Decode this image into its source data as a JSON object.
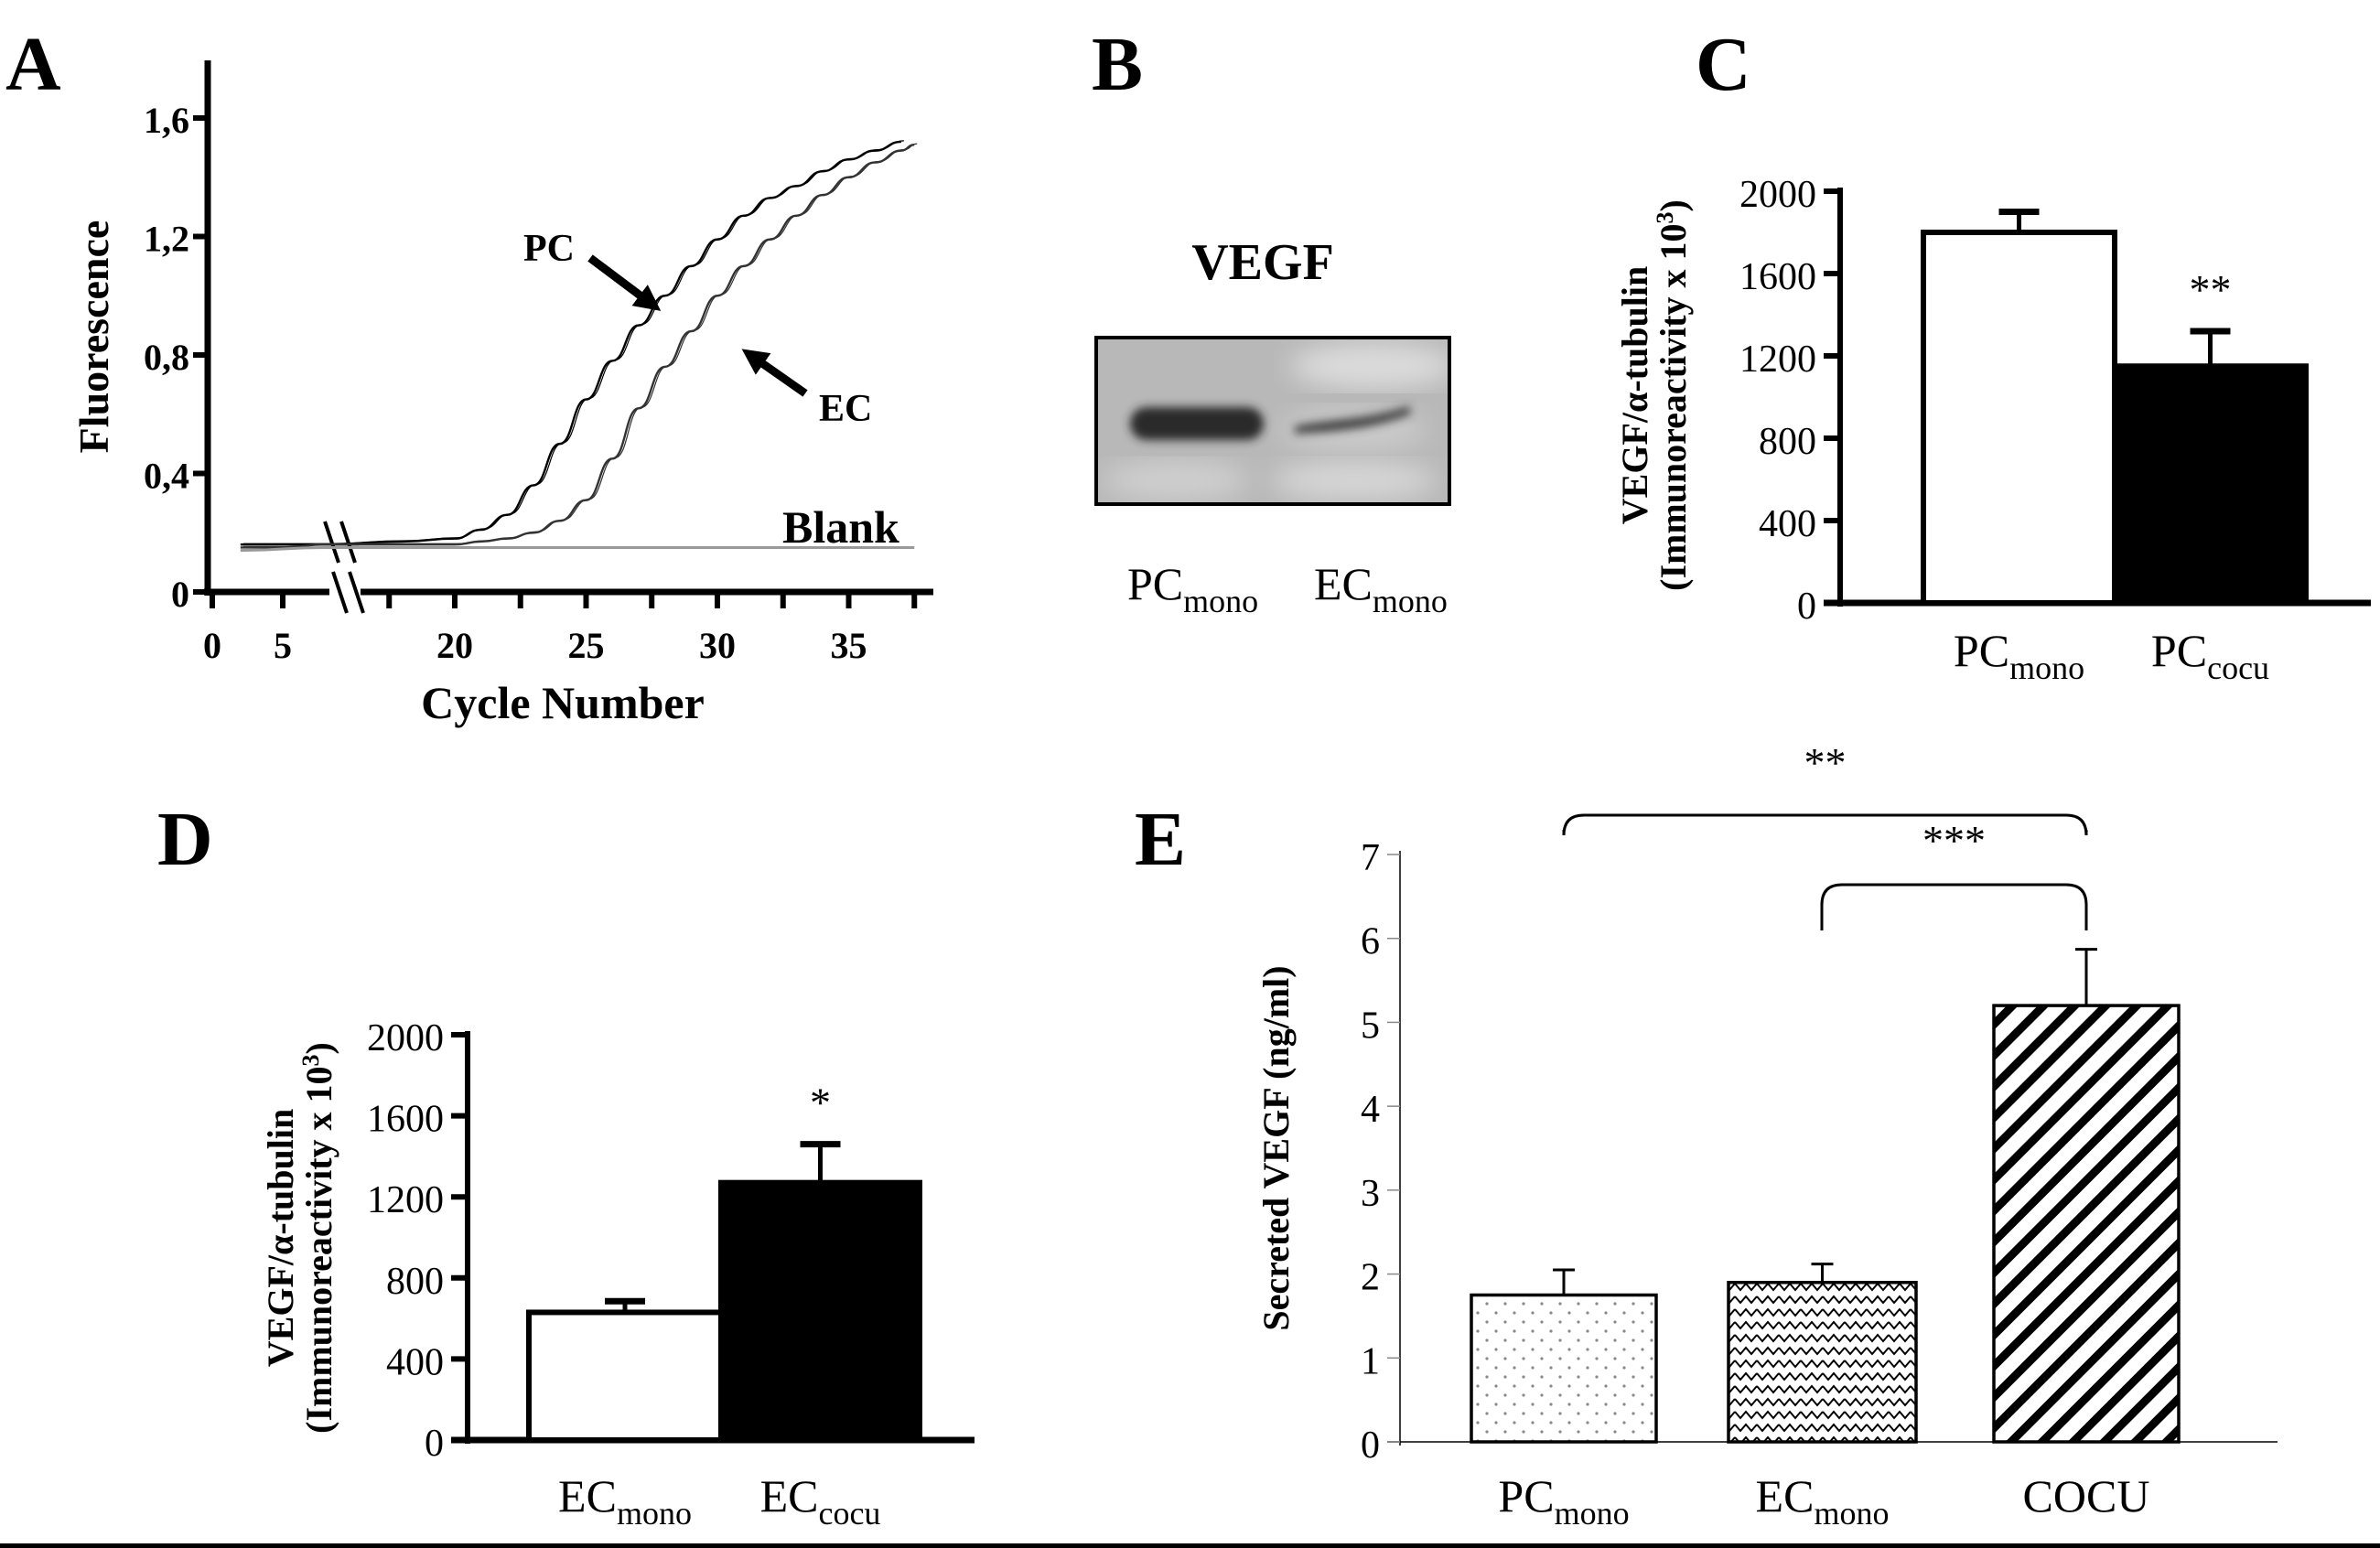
{
  "figure": {
    "panels": [
      "A",
      "B",
      "C",
      "D",
      "E"
    ]
  },
  "panel_a": {
    "letter": "A",
    "ylabel": "Fluorescence",
    "xlabel": "Cycle Number",
    "yticks": [
      "0",
      "0,4",
      "0,8",
      "1,2",
      "1,6"
    ],
    "xticks": [
      "0",
      "5",
      "20",
      "25",
      "30",
      "35"
    ],
    "annotations": {
      "pc": "PC",
      "ec": "EC",
      "blank": "Blank"
    }
  },
  "panel_b": {
    "letter": "B",
    "title": "VEGF",
    "lanes": [
      {
        "main": "PC",
        "sub": "mono"
      },
      {
        "main": "EC",
        "sub": "mono"
      }
    ]
  },
  "panel_c": {
    "letter": "C",
    "ylabel_line1": "VEGF/α-tubulin",
    "ylabel_line2": "(Immunoreactivity x 10",
    "ylabel_sup": "3",
    "ylabel_close": ")",
    "significance": "**"
  },
  "panel_d": {
    "letter": "D",
    "ylabel_line1": "VEGF/α-tubulin",
    "ylabel_line2": "(Immunoreactivity x 10",
    "ylabel_sup": "3",
    "ylabel_close": ")",
    "significance": "*"
  },
  "panel_e": {
    "letter": "E",
    "ylabel": "Secreted VEGF (ng/ml)",
    "brackets": [
      {
        "label": "**",
        "from": "PC_mono",
        "to": "COCU"
      },
      {
        "label": "***",
        "from": "EC_mono",
        "to": "COCU"
      }
    ]
  },
  "chart_data": [
    {
      "id": "A",
      "type": "line",
      "title": "",
      "xlabel": "Cycle Number",
      "ylabel": "Fluorescence",
      "ylim": [
        0,
        1.6
      ],
      "yticks": [
        0,
        0.4,
        0.8,
        1.2,
        1.6
      ],
      "xticks": [
        0,
        5,
        20,
        25,
        30,
        35
      ],
      "axis_break": "between 5 and 20",
      "series": [
        {
          "name": "PC",
          "color": "#000000",
          "x": [
            2,
            5,
            8,
            15,
            18,
            20,
            21,
            22,
            23,
            24,
            25,
            26,
            27,
            28,
            29,
            30,
            31,
            32,
            33,
            34,
            35,
            36,
            37
          ],
          "y": [
            0.16,
            0.16,
            0.16,
            0.16,
            0.17,
            0.18,
            0.21,
            0.26,
            0.36,
            0.5,
            0.65,
            0.78,
            0.9,
            1.0,
            1.1,
            1.19,
            1.27,
            1.33,
            1.37,
            1.42,
            1.46,
            1.49,
            1.52
          ]
        },
        {
          "name": "EC",
          "color": "#333333",
          "x": [
            2,
            5,
            8,
            15,
            18,
            20,
            21,
            22,
            23,
            24,
            25,
            26,
            27,
            28,
            29,
            30,
            31,
            32,
            33,
            34,
            35,
            36,
            37,
            37.5
          ],
          "y": [
            0.15,
            0.15,
            0.16,
            0.16,
            0.16,
            0.16,
            0.17,
            0.18,
            0.2,
            0.24,
            0.31,
            0.45,
            0.62,
            0.76,
            0.88,
            1.0,
            1.1,
            1.19,
            1.27,
            1.34,
            1.4,
            1.45,
            1.49,
            1.51
          ]
        },
        {
          "name": "Blank",
          "color": "#999999",
          "x": [
            2,
            8,
            15,
            37.5
          ],
          "y": [
            0.14,
            0.15,
            0.15,
            0.15
          ]
        }
      ]
    },
    {
      "id": "C",
      "type": "bar",
      "title": "",
      "xlabel": "",
      "ylabel": "VEGF/α-tubulin (Immunoreactivity x 10^3)",
      "ylim": [
        0,
        2000
      ],
      "yticks": [
        0,
        400,
        800,
        1200,
        1600,
        2000
      ],
      "categories": [
        {
          "main": "PC",
          "sub": "mono"
        },
        {
          "main": "PC",
          "sub": "cocu"
        }
      ],
      "values": [
        1800,
        1150
      ],
      "errors": [
        100,
        170
      ],
      "fills": [
        "white",
        "black"
      ],
      "significance": [
        "",
        "**"
      ]
    },
    {
      "id": "D",
      "type": "bar",
      "title": "",
      "xlabel": "",
      "ylabel": "VEGF/α-tubulin (Immunoreactivity x 10^3)",
      "ylim": [
        0,
        2000
      ],
      "yticks": [
        0,
        400,
        800,
        1200,
        1600,
        2000
      ],
      "categories": [
        {
          "main": "EC",
          "sub": "mono"
        },
        {
          "main": "EC",
          "sub": "cocu"
        }
      ],
      "values": [
        630,
        1270
      ],
      "errors": [
        55,
        190
      ],
      "fills": [
        "white",
        "black"
      ],
      "significance": [
        "",
        "*"
      ]
    },
    {
      "id": "E",
      "type": "bar",
      "title": "",
      "xlabel": "",
      "ylabel": "Secreted VEGF (ng/ml)",
      "ylim": [
        0,
        7
      ],
      "yticks": [
        0,
        1,
        2,
        3,
        4,
        5,
        6,
        7
      ],
      "categories": [
        {
          "main": "PC",
          "sub": "mono"
        },
        {
          "main": "EC",
          "sub": "mono"
        },
        {
          "main": "COCU",
          "sub": ""
        }
      ],
      "values": [
        1.75,
        1.9,
        5.2
      ],
      "errors": [
        0.3,
        0.22,
        0.67
      ],
      "fills": [
        "dots",
        "zigzag",
        "diagonal-stripes"
      ],
      "brackets": [
        {
          "from": 0,
          "to": 2,
          "label": "**"
        },
        {
          "from": 1,
          "to": 2,
          "label": "***"
        }
      ]
    }
  ]
}
